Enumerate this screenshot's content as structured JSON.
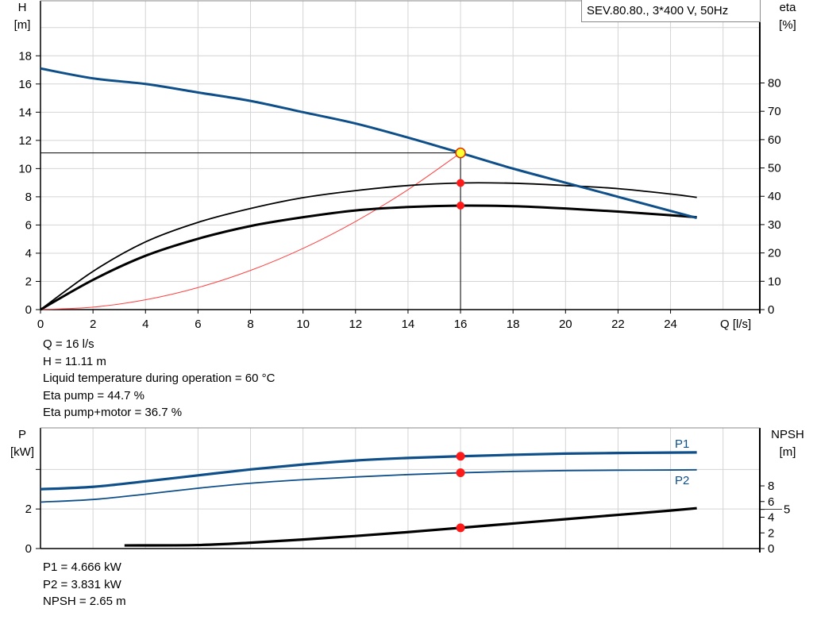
{
  "title": "SEV.80.80., 3*400 V, 50Hz",
  "chart_data": [
    {
      "type": "line",
      "xlabel": "Q [l/s]",
      "ylabel_left": [
        "H",
        "[m]"
      ],
      "ylabel_right": [
        "eta",
        "[%]"
      ],
      "xlim": [
        0,
        27.4
      ],
      "ylim_left": [
        0,
        21.9
      ],
      "ylim_right": [
        0,
        109
      ],
      "xticks": [
        0,
        2,
        4,
        6,
        8,
        10,
        12,
        14,
        16,
        18,
        20,
        22,
        24
      ],
      "yticks_left": [
        0,
        2,
        4,
        6,
        8,
        10,
        12,
        14,
        16,
        18
      ],
      "yticks_right": [
        0,
        10,
        20,
        30,
        40,
        50,
        60,
        70,
        80
      ],
      "grid": true,
      "series": [
        {
          "name": "H",
          "axis": "left",
          "color": "#0e4f8a",
          "x": [
            0,
            2,
            4,
            6,
            8,
            10,
            12,
            14,
            16,
            18,
            20,
            22,
            24,
            25
          ],
          "y": [
            17.1,
            16.4,
            16.0,
            15.4,
            14.8,
            14.0,
            13.2,
            12.2,
            11.11,
            10.0,
            9.0,
            8.0,
            7.0,
            6.5
          ]
        },
        {
          "name": "Eta pump",
          "axis": "right",
          "color": "#000000",
          "x": [
            0,
            2,
            4,
            6,
            8,
            10,
            12,
            14,
            16,
            18,
            20,
            22,
            24,
            25
          ],
          "y": [
            0,
            13.5,
            23.9,
            30.8,
            35.7,
            39.5,
            42.0,
            43.8,
            44.7,
            44.6,
            43.8,
            42.7,
            40.8,
            39.6
          ]
        },
        {
          "name": "Eta pump+motor",
          "axis": "right",
          "color": "#000000",
          "x": [
            0,
            2,
            4,
            6,
            8,
            10,
            12,
            14,
            16,
            18,
            20,
            22,
            24,
            25
          ],
          "y": [
            0,
            10.5,
            19.0,
            25.0,
            29.5,
            32.6,
            35.0,
            36.2,
            36.7,
            36.5,
            35.7,
            34.6,
            33.3,
            32.6
          ]
        },
        {
          "name": "System curve",
          "axis": "left",
          "color": "#ff4040",
          "x": [
            0,
            2,
            4,
            6,
            8,
            10,
            12,
            14,
            16
          ],
          "y": [
            0,
            0.174,
            0.694,
            1.562,
            2.778,
            4.34,
            6.249,
            8.506,
            11.11
          ]
        }
      ],
      "operating_point": {
        "Q": 16,
        "H": 11.11,
        "eta_pump": 44.7,
        "eta_total": 36.7
      }
    },
    {
      "type": "line",
      "ylabel_left": [
        "P",
        "[kW]"
      ],
      "ylabel_right": [
        "NPSH",
        "[m]"
      ],
      "xlim": [
        0,
        27.4
      ],
      "ylim_left": [
        0,
        6.1
      ],
      "ylim_right": [
        0,
        15.4
      ],
      "yticks_left": [
        0,
        2,
        4
      ],
      "yticks_left_labels": [
        "0",
        "2",
        ""
      ],
      "yticks_right": [
        0,
        2,
        4,
        5,
        6,
        8
      ],
      "grid": true,
      "series": [
        {
          "name": "P1",
          "axis": "left",
          "color": "#0e4f8a",
          "x": [
            0,
            2,
            4,
            6,
            8,
            10,
            12,
            14,
            16,
            18,
            20,
            22,
            24,
            25
          ],
          "y": [
            3.0,
            3.12,
            3.4,
            3.7,
            4.0,
            4.25,
            4.45,
            4.58,
            4.666,
            4.74,
            4.8,
            4.83,
            4.85,
            4.86
          ]
        },
        {
          "name": "P2",
          "axis": "left",
          "color": "#0e4f8a",
          "x": [
            0,
            2,
            4,
            6,
            8,
            10,
            12,
            14,
            16,
            18,
            20,
            22,
            24,
            25
          ],
          "y": [
            2.35,
            2.48,
            2.75,
            3.05,
            3.3,
            3.48,
            3.62,
            3.74,
            3.831,
            3.9,
            3.94,
            3.96,
            3.97,
            3.98
          ]
        },
        {
          "name": "NPSH",
          "axis": "right",
          "color": "#000000",
          "x": [
            3.2,
            6,
            8,
            10,
            12,
            14,
            16,
            18,
            20,
            22,
            24,
            25
          ],
          "y": [
            0.4,
            0.45,
            0.75,
            1.15,
            1.6,
            2.1,
            2.65,
            3.2,
            3.75,
            4.3,
            4.85,
            5.15
          ]
        }
      ],
      "operating_point": {
        "Q": 16,
        "P1": 4.666,
        "P2": 3.831,
        "NPSH": 2.65
      }
    }
  ],
  "info_top": [
    "Q = 16 l/s",
    "H = 11.11 m",
    "Liquid temperature during operation = 60 °C",
    "Eta pump = 44.7 %",
    "Eta pump+motor = 36.7 %"
  ],
  "info_bottom": [
    "P1 = 4.666 kW",
    "P2 = 3.831 kW",
    "NPSH = 2.65 m"
  ]
}
